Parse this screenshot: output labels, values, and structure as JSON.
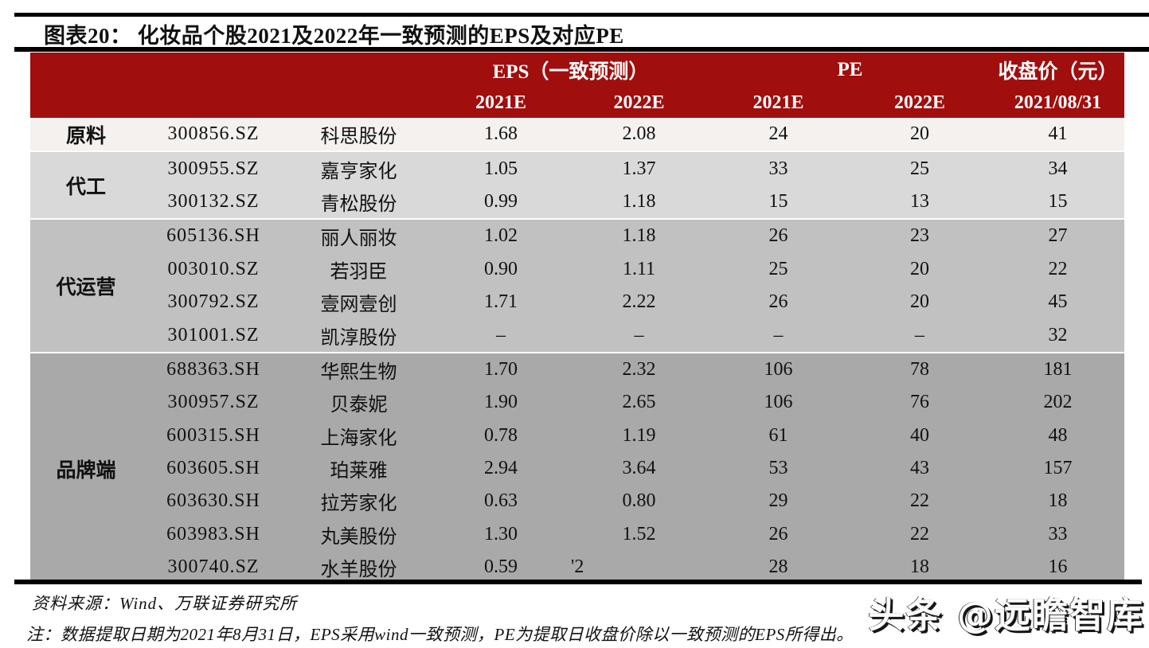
{
  "figure": {
    "title": "图表20： 化妆品个股2021及2022年一致预测的EPS及对应PE"
  },
  "table": {
    "header_groups": {
      "eps": "EPS（一致预测）",
      "pe": "PE",
      "close": "收盘价（元）"
    },
    "sub_headers": {
      "eps_2021e": "2021E",
      "eps_2022e": "2022E",
      "pe_2021e": "2021E",
      "pe_2022e": "2022E",
      "close_date": "2021/08/31"
    },
    "groups": [
      {
        "label": "原料",
        "bg": "#F4F1EF",
        "rows": [
          {
            "code": "300856.SZ",
            "name": "科思股份",
            "eps_2021e": "1.68",
            "eps_2022e": "2.08",
            "pe_2021e": "24",
            "pe_2022e": "20",
            "close": "41"
          }
        ]
      },
      {
        "label": "代工",
        "bg": "#D9D9D9",
        "rows": [
          {
            "code": "300955.SZ",
            "name": "嘉亨家化",
            "eps_2021e": "1.05",
            "eps_2022e": "1.37",
            "pe_2021e": "33",
            "pe_2022e": "25",
            "close": "34"
          },
          {
            "code": "300132.SZ",
            "name": "青松股份",
            "eps_2021e": "0.99",
            "eps_2022e": "1.18",
            "pe_2021e": "15",
            "pe_2022e": "13",
            "close": "15"
          }
        ]
      },
      {
        "label": "代运营",
        "bg": "#C1C1C1",
        "rows": [
          {
            "code": "605136.SH",
            "name": "丽人丽妆",
            "eps_2021e": "1.02",
            "eps_2022e": "1.18",
            "pe_2021e": "26",
            "pe_2022e": "23",
            "close": "27"
          },
          {
            "code": "003010.SZ",
            "name": "若羽臣",
            "eps_2021e": "0.90",
            "eps_2022e": "1.11",
            "pe_2021e": "25",
            "pe_2022e": "20",
            "close": "22"
          },
          {
            "code": "300792.SZ",
            "name": "壹网壹创",
            "eps_2021e": "1.71",
            "eps_2022e": "2.22",
            "pe_2021e": "26",
            "pe_2022e": "20",
            "close": "45"
          },
          {
            "code": "301001.SZ",
            "name": "凯淳股份",
            "eps_2021e": "–",
            "eps_2022e": "–",
            "pe_2021e": "–",
            "pe_2022e": "–",
            "close": "32"
          }
        ]
      },
      {
        "label": "品牌端",
        "bg": "#A9A9A9",
        "rows": [
          {
            "code": "688363.SH",
            "name": "华熙生物",
            "eps_2021e": "1.70",
            "eps_2022e": "2.32",
            "pe_2021e": "106",
            "pe_2022e": "78",
            "close": "181"
          },
          {
            "code": "300957.SZ",
            "name": "贝泰妮",
            "eps_2021e": "1.90",
            "eps_2022e": "2.65",
            "pe_2021e": "106",
            "pe_2022e": "76",
            "close": "202"
          },
          {
            "code": "600315.SH",
            "name": "上海家化",
            "eps_2021e": "0.78",
            "eps_2022e": "1.19",
            "pe_2021e": "61",
            "pe_2022e": "40",
            "close": "48"
          },
          {
            "code": "603605.SH",
            "name": "珀莱雅",
            "eps_2021e": "2.94",
            "eps_2022e": "3.64",
            "pe_2021e": "53",
            "pe_2022e": "43",
            "close": "157"
          },
          {
            "code": "603630.SH",
            "name": "拉芳家化",
            "eps_2021e": "0.63",
            "eps_2022e": "0.80",
            "pe_2021e": "29",
            "pe_2022e": "22",
            "close": "18"
          },
          {
            "code": "603983.SH",
            "name": "丸美股份",
            "eps_2021e": "1.30",
            "eps_2022e": "1.52",
            "pe_2021e": "26",
            "pe_2022e": "22",
            "close": "33"
          },
          {
            "code": "300740.SZ",
            "name": "水羊股份",
            "eps_2021e": "0.59",
            "eps_2022e": "'2",
            "eps_2022e_clipped": true,
            "pe_2021e": "28",
            "pe_2022e": "18",
            "close": "16"
          }
        ]
      }
    ]
  },
  "footer": {
    "source": "资料来源：Wind、万联证券研究所",
    "note": "注：数据提取日期为2021年8月31日，EPS采用wind一致预测，PE为提取日收盘价除以一致预测的EPS所得出。",
    "watermark": "头条 @远瞻智库"
  },
  "colors": {
    "header_bg": "#A00E0E",
    "rule": "#000000"
  }
}
